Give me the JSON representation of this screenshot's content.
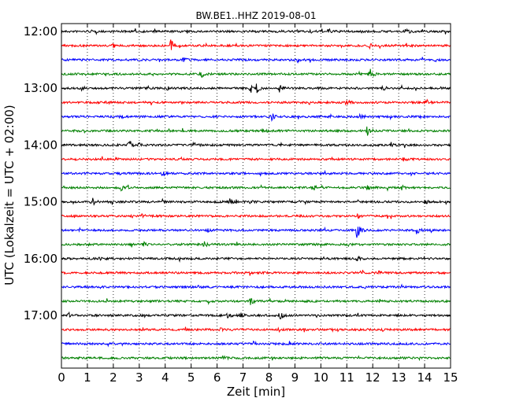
{
  "chart_data": {
    "type": "line",
    "title": "BW.BE1..HHZ 2019-08-01",
    "xlabel": "Zeit  [min]",
    "ylabel": "UTC (Lokalzeit = UTC + 02:00)",
    "xlim": [
      0,
      15
    ],
    "x_ticks": [
      "0",
      "1",
      "2",
      "3",
      "4",
      "5",
      "6",
      "7",
      "8",
      "9",
      "10",
      "11",
      "12",
      "13",
      "14",
      "15"
    ],
    "y_ticks": [
      "12:00",
      "13:00",
      "14:00",
      "15:00",
      "16:00",
      "17:00"
    ],
    "grid": "vertical dotted",
    "trace_colors": [
      "#000000",
      "#ff0000",
      "#0000ff",
      "#008000"
    ],
    "trace_interval_min": 15,
    "traces": [
      {
        "start": "12:00",
        "events": [
          [
            9.6,
            0.3
          ],
          [
            10.3,
            0.3
          ],
          [
            13.3,
            0.5
          ]
        ]
      },
      {
        "start": "12:15",
        "events": [
          [
            2.0,
            0.3
          ],
          [
            4.2,
            1.0
          ],
          [
            11.9,
            0.3
          ]
        ]
      },
      {
        "start": "12:30",
        "events": [
          [
            4.7,
            0.3
          ],
          [
            9.1,
            0.3
          ]
        ]
      },
      {
        "start": "12:45",
        "events": [
          [
            5.4,
            0.4
          ],
          [
            11.9,
            1.0
          ]
        ]
      },
      {
        "start": "13:00",
        "events": [
          [
            0.8,
            0.3
          ],
          [
            4.1,
            0.3
          ],
          [
            7.3,
            0.6
          ],
          [
            7.5,
            0.8
          ],
          [
            8.4,
            0.5
          ],
          [
            12.4,
            0.3
          ]
        ]
      },
      {
        "start": "13:15",
        "events": [
          [
            1.7,
            0.2
          ],
          [
            11.0,
            0.4
          ],
          [
            14.1,
            0.3
          ]
        ]
      },
      {
        "start": "13:30",
        "events": [
          [
            2.3,
            0.3
          ],
          [
            8.1,
            0.5
          ],
          [
            11.5,
            0.4
          ]
        ]
      },
      {
        "start": "13:45",
        "events": [
          [
            7.8,
            0.6
          ],
          [
            11.8,
            0.7
          ]
        ]
      },
      {
        "start": "14:00",
        "events": [
          [
            2.6,
            0.4
          ],
          [
            3.0,
            0.4
          ],
          [
            5.1,
            0.4
          ],
          [
            12.7,
            0.4
          ]
        ]
      },
      {
        "start": "14:15",
        "events": [
          [
            2.1,
            0.2
          ],
          [
            13.2,
            0.2
          ]
        ]
      },
      {
        "start": "14:30",
        "events": [
          [
            3.9,
            0.3
          ]
        ]
      },
      {
        "start": "14:45",
        "events": [
          [
            2.3,
            0.4
          ],
          [
            9.7,
            0.4
          ],
          [
            11.8,
            0.3
          ],
          [
            13.1,
            0.4
          ]
        ]
      },
      {
        "start": "15:00",
        "events": [
          [
            1.2,
            0.5
          ],
          [
            6.5,
            0.4
          ],
          [
            7.3,
            0.3
          ],
          [
            14.0,
            0.3
          ]
        ]
      },
      {
        "start": "15:15",
        "events": [
          [
            3.1,
            0.2
          ],
          [
            11.4,
            0.4
          ]
        ]
      },
      {
        "start": "15:30",
        "events": [
          [
            5.6,
            0.3
          ],
          [
            11.4,
            1.2
          ],
          [
            13.7,
            0.5
          ]
        ]
      },
      {
        "start": "15:45",
        "events": [
          [
            3.2,
            0.3
          ],
          [
            5.5,
            0.4
          ],
          [
            11.1,
            0.3
          ]
        ]
      },
      {
        "start": "16:00",
        "events": [
          [
            1.5,
            0.2
          ],
          [
            11.4,
            0.3
          ]
        ]
      },
      {
        "start": "16:15",
        "events": [
          [
            12.2,
            0.3
          ]
        ]
      },
      {
        "start": "16:30",
        "events": [
          [
            5.3,
            0.2
          ]
        ]
      },
      {
        "start": "16:45",
        "events": [
          [
            7.3,
            0.5
          ]
        ]
      },
      {
        "start": "17:00",
        "events": [
          [
            0.3,
            0.3
          ],
          [
            6.4,
            0.4
          ],
          [
            6.9,
            0.3
          ],
          [
            8.4,
            0.9
          ]
        ]
      },
      {
        "start": "17:15",
        "events": [
          [
            6.1,
            0.2
          ]
        ]
      },
      {
        "start": "17:30",
        "events": [
          [
            7.4,
            0.3
          ]
        ]
      },
      {
        "start": "17:45",
        "events": [
          [
            6.3,
            0.2
          ]
        ]
      }
    ]
  }
}
